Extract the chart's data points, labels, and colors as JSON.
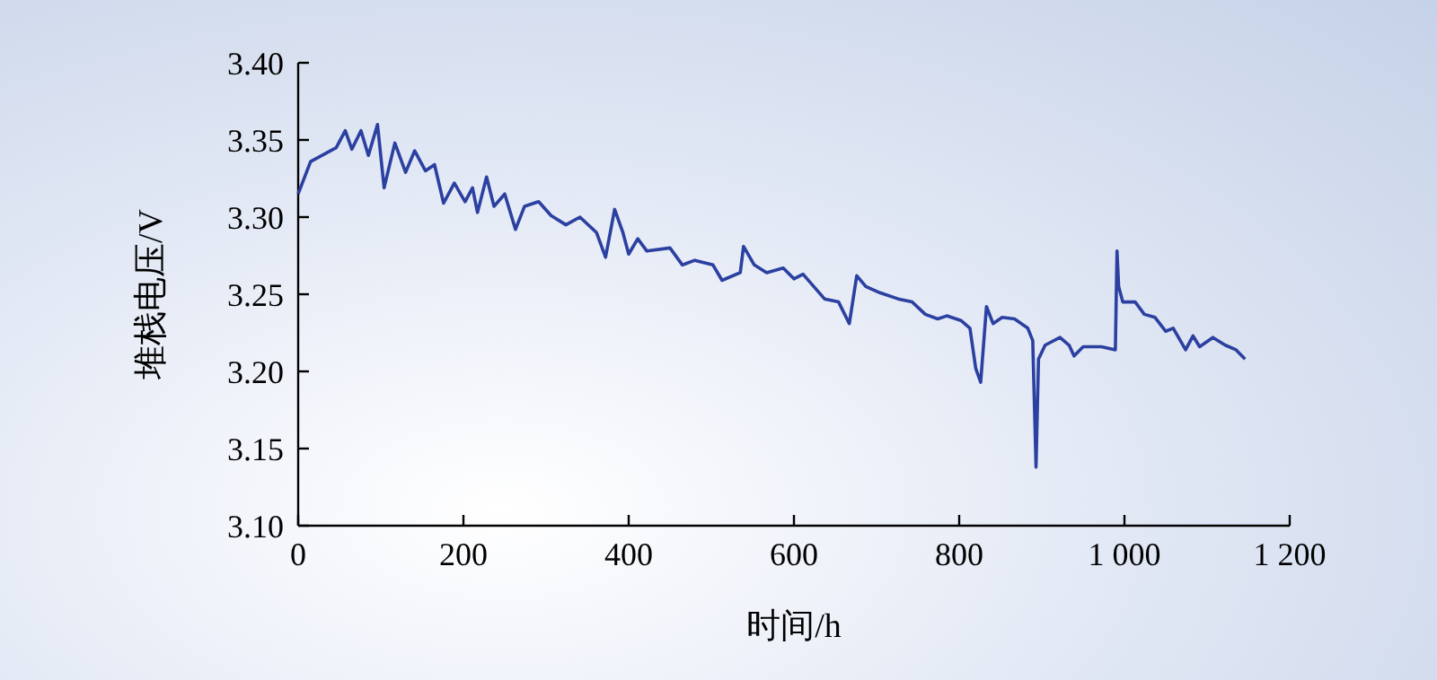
{
  "chart_data": {
    "type": "line",
    "xlabel": "时间/h",
    "ylabel": "堆栈电压/V",
    "xlim": [
      0,
      1200
    ],
    "ylim": [
      3.1,
      3.4
    ],
    "xticks": [
      0,
      200,
      400,
      600,
      800,
      {
        "value": 1000,
        "label": "1 000"
      },
      {
        "value": 1200,
        "label": "1 200"
      }
    ],
    "yticks": [
      {
        "value": 3.1,
        "label": "3.10"
      },
      {
        "value": 3.15,
        "label": "3.15"
      },
      {
        "value": 3.2,
        "label": "3.20"
      },
      {
        "value": 3.25,
        "label": "3.25"
      },
      {
        "value": 3.3,
        "label": "3.30"
      },
      {
        "value": 3.35,
        "label": "3.35"
      },
      {
        "value": 3.4,
        "label": "3.40"
      }
    ],
    "grid": false,
    "marker": "none",
    "line_style": "solid",
    "series": [
      {
        "color": "#2b40a0",
        "x": [
          0,
          15,
          46,
          57,
          65,
          76,
          85,
          96,
          104,
          117,
          130,
          141,
          154,
          165,
          176,
          189,
          202,
          211,
          217,
          228,
          237,
          250,
          263,
          274,
          291,
          306,
          324,
          341,
          361,
          372,
          383,
          393,
          400,
          411,
          422,
          450,
          465,
          480,
          502,
          513,
          535,
          539,
          552,
          567,
          587,
          600,
          611,
          624,
          637,
          654,
          667,
          676,
          687,
          704,
          726,
          743,
          759,
          774,
          785,
          802,
          813,
          820,
          826,
          833,
          841,
          852,
          867,
          883,
          889,
          893,
          896,
          904,
          922,
          933,
          939,
          950,
          972,
          989,
          991,
          993,
          998,
          1013,
          1024,
          1037,
          1050,
          1059,
          1074,
          1083,
          1091,
          1107,
          1122,
          1135,
          1146
        ],
        "values": [
          3.315,
          3.336,
          3.345,
          3.356,
          3.344,
          3.356,
          3.34,
          3.36,
          3.319,
          3.348,
          3.329,
          3.343,
          3.33,
          3.334,
          3.309,
          3.322,
          3.31,
          3.319,
          3.303,
          3.326,
          3.307,
          3.315,
          3.292,
          3.307,
          3.31,
          3.301,
          3.295,
          3.3,
          3.29,
          3.274,
          3.305,
          3.29,
          3.276,
          3.286,
          3.278,
          3.28,
          3.269,
          3.272,
          3.269,
          3.259,
          3.264,
          3.281,
          3.269,
          3.264,
          3.267,
          3.26,
          3.263,
          3.255,
          3.247,
          3.245,
          3.231,
          3.262,
          3.255,
          3.251,
          3.247,
          3.245,
          3.237,
          3.234,
          3.236,
          3.233,
          3.228,
          3.202,
          3.193,
          3.242,
          3.231,
          3.235,
          3.234,
          3.228,
          3.22,
          3.138,
          3.208,
          3.217,
          3.222,
          3.217,
          3.21,
          3.216,
          3.216,
          3.214,
          3.278,
          3.255,
          3.245,
          3.245,
          3.237,
          3.235,
          3.226,
          3.228,
          3.214,
          3.223,
          3.216,
          3.222,
          3.217,
          3.214,
          3.208
        ]
      }
    ]
  }
}
